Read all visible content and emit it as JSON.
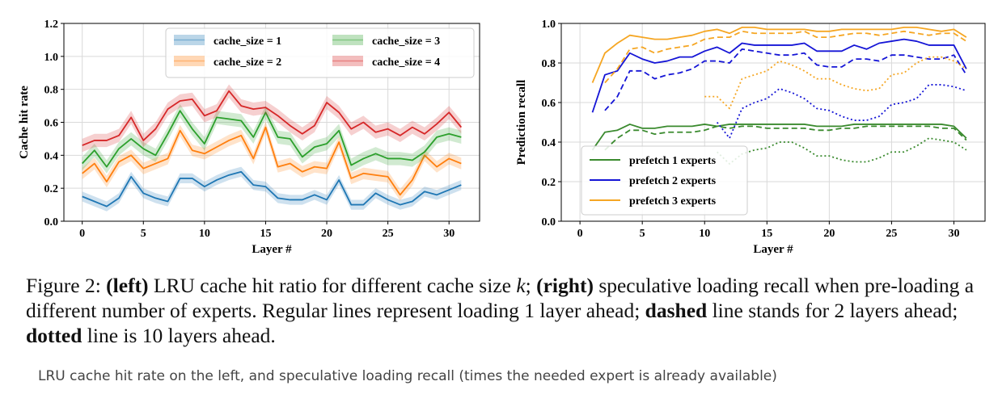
{
  "chart_data": [
    {
      "type": "line",
      "panel": "left",
      "xlabel": "Layer #",
      "ylabel": "Cache hit rate",
      "xlim": [
        -1.5,
        32.5
      ],
      "ylim": [
        0.0,
        1.2
      ],
      "xticks": [
        0,
        5,
        10,
        15,
        20,
        25,
        30
      ],
      "yticks": [
        "0.0",
        "0.2",
        "0.4",
        "0.6",
        "0.8",
        "1.0",
        "1.2"
      ],
      "grid": true,
      "legend_position": "top-right",
      "x": [
        0,
        1,
        2,
        3,
        4,
        5,
        6,
        7,
        8,
        9,
        10,
        11,
        12,
        13,
        14,
        15,
        16,
        17,
        18,
        19,
        20,
        21,
        22,
        23,
        24,
        25,
        26,
        27,
        28,
        29,
        30,
        31
      ],
      "series": [
        {
          "name": "cache_size = 1",
          "color": "#1f77b4",
          "values": [
            0.15,
            0.12,
            0.09,
            0.14,
            0.27,
            0.17,
            0.14,
            0.12,
            0.26,
            0.26,
            0.21,
            0.25,
            0.28,
            0.3,
            0.22,
            0.21,
            0.14,
            0.13,
            0.13,
            0.16,
            0.13,
            0.25,
            0.1,
            0.1,
            0.17,
            0.13,
            0.1,
            0.12,
            0.18,
            0.16,
            0.19,
            0.22
          ],
          "band": 0.03
        },
        {
          "name": "cache_size = 2",
          "color": "#ff7f0e",
          "values": [
            0.29,
            0.35,
            0.24,
            0.36,
            0.4,
            0.32,
            0.35,
            0.38,
            0.55,
            0.43,
            0.41,
            0.45,
            0.49,
            0.52,
            0.38,
            0.57,
            0.33,
            0.35,
            0.3,
            0.33,
            0.32,
            0.48,
            0.26,
            0.29,
            0.28,
            0.27,
            0.16,
            0.25,
            0.4,
            0.33,
            0.38,
            0.35
          ],
          "band": 0.035
        },
        {
          "name": "cache_size = 3",
          "color": "#2ca02c",
          "values": [
            0.35,
            0.43,
            0.33,
            0.44,
            0.5,
            0.44,
            0.4,
            0.53,
            0.67,
            0.56,
            0.47,
            0.63,
            0.62,
            0.61,
            0.51,
            0.66,
            0.51,
            0.5,
            0.39,
            0.45,
            0.47,
            0.55,
            0.34,
            0.38,
            0.41,
            0.38,
            0.38,
            0.37,
            0.42,
            0.51,
            0.53,
            0.51
          ],
          "band": 0.04
        },
        {
          "name": "cache_size = 4",
          "color": "#d62728",
          "values": [
            0.46,
            0.49,
            0.49,
            0.52,
            0.63,
            0.49,
            0.56,
            0.68,
            0.73,
            0.74,
            0.64,
            0.67,
            0.79,
            0.7,
            0.68,
            0.69,
            0.64,
            0.58,
            0.53,
            0.58,
            0.72,
            0.66,
            0.56,
            0.6,
            0.54,
            0.56,
            0.52,
            0.57,
            0.53,
            0.59,
            0.66,
            0.57
          ],
          "band": 0.04
        }
      ]
    },
    {
      "type": "line",
      "panel": "right",
      "xlabel": "Layer #",
      "ylabel": "Prediction recall",
      "xlim": [
        -1.5,
        32.5
      ],
      "ylim": [
        0.0,
        1.0
      ],
      "xticks": [
        0,
        5,
        10,
        15,
        20,
        25,
        30
      ],
      "yticks": [
        "0.0",
        "0.2",
        "0.4",
        "0.6",
        "0.8",
        "1.0"
      ],
      "grid": true,
      "legend_position": "bottom-left",
      "legend": [
        {
          "label": "prefetch 1 experts",
          "color": "#3a8a2e"
        },
        {
          "label": "prefetch 2 experts",
          "color": "#1515d6"
        },
        {
          "label": "prefetch 3 experts",
          "color": "#f5a623"
        }
      ],
      "series": [
        {
          "name": "prefetch 1 experts",
          "ahead": 1,
          "style": "solid",
          "color": "#3a8a2e",
          "x": [
            1,
            2,
            3,
            4,
            5,
            6,
            7,
            8,
            9,
            10,
            11,
            12,
            13,
            14,
            15,
            16,
            17,
            18,
            19,
            20,
            21,
            22,
            23,
            24,
            25,
            26,
            27,
            28,
            29,
            30,
            31
          ],
          "values": [
            0.36,
            0.45,
            0.46,
            0.49,
            0.47,
            0.47,
            0.48,
            0.48,
            0.48,
            0.49,
            0.48,
            0.49,
            0.49,
            0.49,
            0.49,
            0.49,
            0.49,
            0.49,
            0.48,
            0.48,
            0.48,
            0.49,
            0.49,
            0.49,
            0.49,
            0.49,
            0.49,
            0.49,
            0.49,
            0.48,
            0.42
          ]
        },
        {
          "name": "prefetch 2 experts",
          "ahead": 1,
          "style": "solid",
          "color": "#1515d6",
          "x": [
            1,
            2,
            3,
            4,
            5,
            6,
            7,
            8,
            9,
            10,
            11,
            12,
            13,
            14,
            15,
            16,
            17,
            18,
            19,
            20,
            21,
            22,
            23,
            24,
            25,
            26,
            27,
            28,
            29,
            30,
            31
          ],
          "values": [
            0.55,
            0.74,
            0.76,
            0.85,
            0.82,
            0.8,
            0.81,
            0.83,
            0.83,
            0.86,
            0.88,
            0.85,
            0.9,
            0.89,
            0.89,
            0.89,
            0.89,
            0.9,
            0.86,
            0.86,
            0.86,
            0.89,
            0.87,
            0.9,
            0.91,
            0.92,
            0.91,
            0.89,
            0.89,
            0.89,
            0.77
          ]
        },
        {
          "name": "prefetch 3 experts",
          "ahead": 1,
          "style": "solid",
          "color": "#f5a623",
          "x": [
            1,
            2,
            3,
            4,
            5,
            6,
            7,
            8,
            9,
            10,
            11,
            12,
            13,
            14,
            15,
            16,
            17,
            18,
            19,
            20,
            21,
            22,
            23,
            24,
            25,
            26,
            27,
            28,
            29,
            30,
            31
          ],
          "values": [
            0.7,
            0.85,
            0.9,
            0.94,
            0.93,
            0.92,
            0.92,
            0.93,
            0.94,
            0.96,
            0.97,
            0.95,
            0.98,
            0.98,
            0.97,
            0.97,
            0.97,
            0.97,
            0.96,
            0.96,
            0.97,
            0.97,
            0.97,
            0.97,
            0.97,
            0.98,
            0.98,
            0.97,
            0.96,
            0.97,
            0.93
          ]
        },
        {
          "name": "prefetch 1 experts",
          "ahead": 2,
          "style": "dashed",
          "color": "#3a8a2e",
          "x": [
            2,
            3,
            4,
            5,
            6,
            7,
            8,
            9,
            10,
            11,
            12,
            13,
            14,
            15,
            16,
            17,
            18,
            19,
            20,
            21,
            22,
            23,
            24,
            25,
            26,
            27,
            28,
            29,
            30,
            31
          ],
          "values": [
            0.36,
            0.42,
            0.46,
            0.46,
            0.44,
            0.45,
            0.45,
            0.45,
            0.46,
            0.48,
            0.47,
            0.48,
            0.48,
            0.47,
            0.47,
            0.47,
            0.47,
            0.46,
            0.46,
            0.47,
            0.47,
            0.48,
            0.48,
            0.48,
            0.48,
            0.48,
            0.48,
            0.47,
            0.47,
            0.41
          ]
        },
        {
          "name": "prefetch 2 experts",
          "ahead": 2,
          "style": "dashed",
          "color": "#1515d6",
          "x": [
            2,
            3,
            4,
            5,
            6,
            7,
            8,
            9,
            10,
            11,
            12,
            13,
            14,
            15,
            16,
            17,
            18,
            19,
            20,
            21,
            22,
            23,
            24,
            25,
            26,
            27,
            28,
            29,
            30,
            31
          ],
          "values": [
            0.56,
            0.63,
            0.76,
            0.76,
            0.72,
            0.74,
            0.75,
            0.77,
            0.81,
            0.81,
            0.8,
            0.87,
            0.86,
            0.85,
            0.84,
            0.84,
            0.85,
            0.79,
            0.78,
            0.78,
            0.82,
            0.82,
            0.81,
            0.84,
            0.84,
            0.83,
            0.82,
            0.82,
            0.84,
            0.74
          ]
        },
        {
          "name": "prefetch 3 experts",
          "ahead": 2,
          "style": "dashed",
          "color": "#f5a623",
          "x": [
            2,
            3,
            4,
            5,
            6,
            7,
            8,
            9,
            10,
            11,
            12,
            13,
            14,
            15,
            16,
            17,
            18,
            19,
            20,
            21,
            22,
            23,
            24,
            25,
            26,
            27,
            28,
            29,
            30,
            31
          ],
          "values": [
            0.7,
            0.77,
            0.87,
            0.88,
            0.85,
            0.87,
            0.88,
            0.89,
            0.92,
            0.93,
            0.93,
            0.96,
            0.95,
            0.95,
            0.95,
            0.95,
            0.96,
            0.93,
            0.93,
            0.94,
            0.95,
            0.95,
            0.94,
            0.95,
            0.96,
            0.95,
            0.94,
            0.95,
            0.95,
            0.91
          ]
        },
        {
          "name": "prefetch 1 experts",
          "ahead": 10,
          "style": "dotted",
          "color": "#3a8a2e",
          "x": [
            11,
            12,
            13,
            14,
            15,
            16,
            17,
            18,
            19,
            20,
            21,
            22,
            23,
            24,
            25,
            26,
            27,
            28,
            29,
            30,
            31
          ],
          "values": [
            0.35,
            0.29,
            0.34,
            0.36,
            0.37,
            0.4,
            0.4,
            0.37,
            0.33,
            0.33,
            0.31,
            0.3,
            0.3,
            0.32,
            0.35,
            0.35,
            0.38,
            0.42,
            0.41,
            0.4,
            0.36
          ]
        },
        {
          "name": "prefetch 2 experts",
          "ahead": 10,
          "style": "dotted",
          "color": "#1515d6",
          "x": [
            11,
            12,
            13,
            14,
            15,
            16,
            17,
            18,
            19,
            20,
            21,
            22,
            23,
            24,
            25,
            26,
            27,
            28,
            29,
            30,
            31
          ],
          "values": [
            0.5,
            0.42,
            0.57,
            0.6,
            0.62,
            0.67,
            0.65,
            0.62,
            0.57,
            0.56,
            0.53,
            0.51,
            0.51,
            0.53,
            0.59,
            0.6,
            0.62,
            0.69,
            0.69,
            0.68,
            0.66
          ]
        },
        {
          "name": "prefetch 3 experts",
          "ahead": 10,
          "style": "dotted",
          "color": "#f5a623",
          "x": [
            10,
            11,
            12,
            13,
            14,
            15,
            16,
            17,
            18,
            19,
            20,
            21,
            22,
            23,
            24,
            25,
            26,
            27,
            28,
            29,
            30,
            31
          ],
          "values": [
            0.63,
            0.63,
            0.57,
            0.72,
            0.74,
            0.76,
            0.81,
            0.79,
            0.76,
            0.72,
            0.72,
            0.69,
            0.67,
            0.66,
            0.67,
            0.74,
            0.75,
            0.8,
            0.83,
            0.83,
            0.81,
            0.77
          ]
        }
      ]
    }
  ],
  "caption": {
    "prefix": "Figure 2: ",
    "left_bold": "(left)",
    "part1": " LRU cache hit ratio for different cache size ",
    "k": "k",
    "part2": "; ",
    "right_bold": "(right)",
    "part3": " speculative loading recall when pre-loading a different number of experts. Regular lines represent loading 1 layer ahead; ",
    "dashed_bold": "dashed",
    "part4": " line stands for 2 layers ahead; ",
    "dotted_bold": "dotted",
    "part5": " line is 10 layers ahead."
  },
  "subcaption": "LRU cache hit rate on the left, and speculative loading recall (times the needed expert is already available)"
}
